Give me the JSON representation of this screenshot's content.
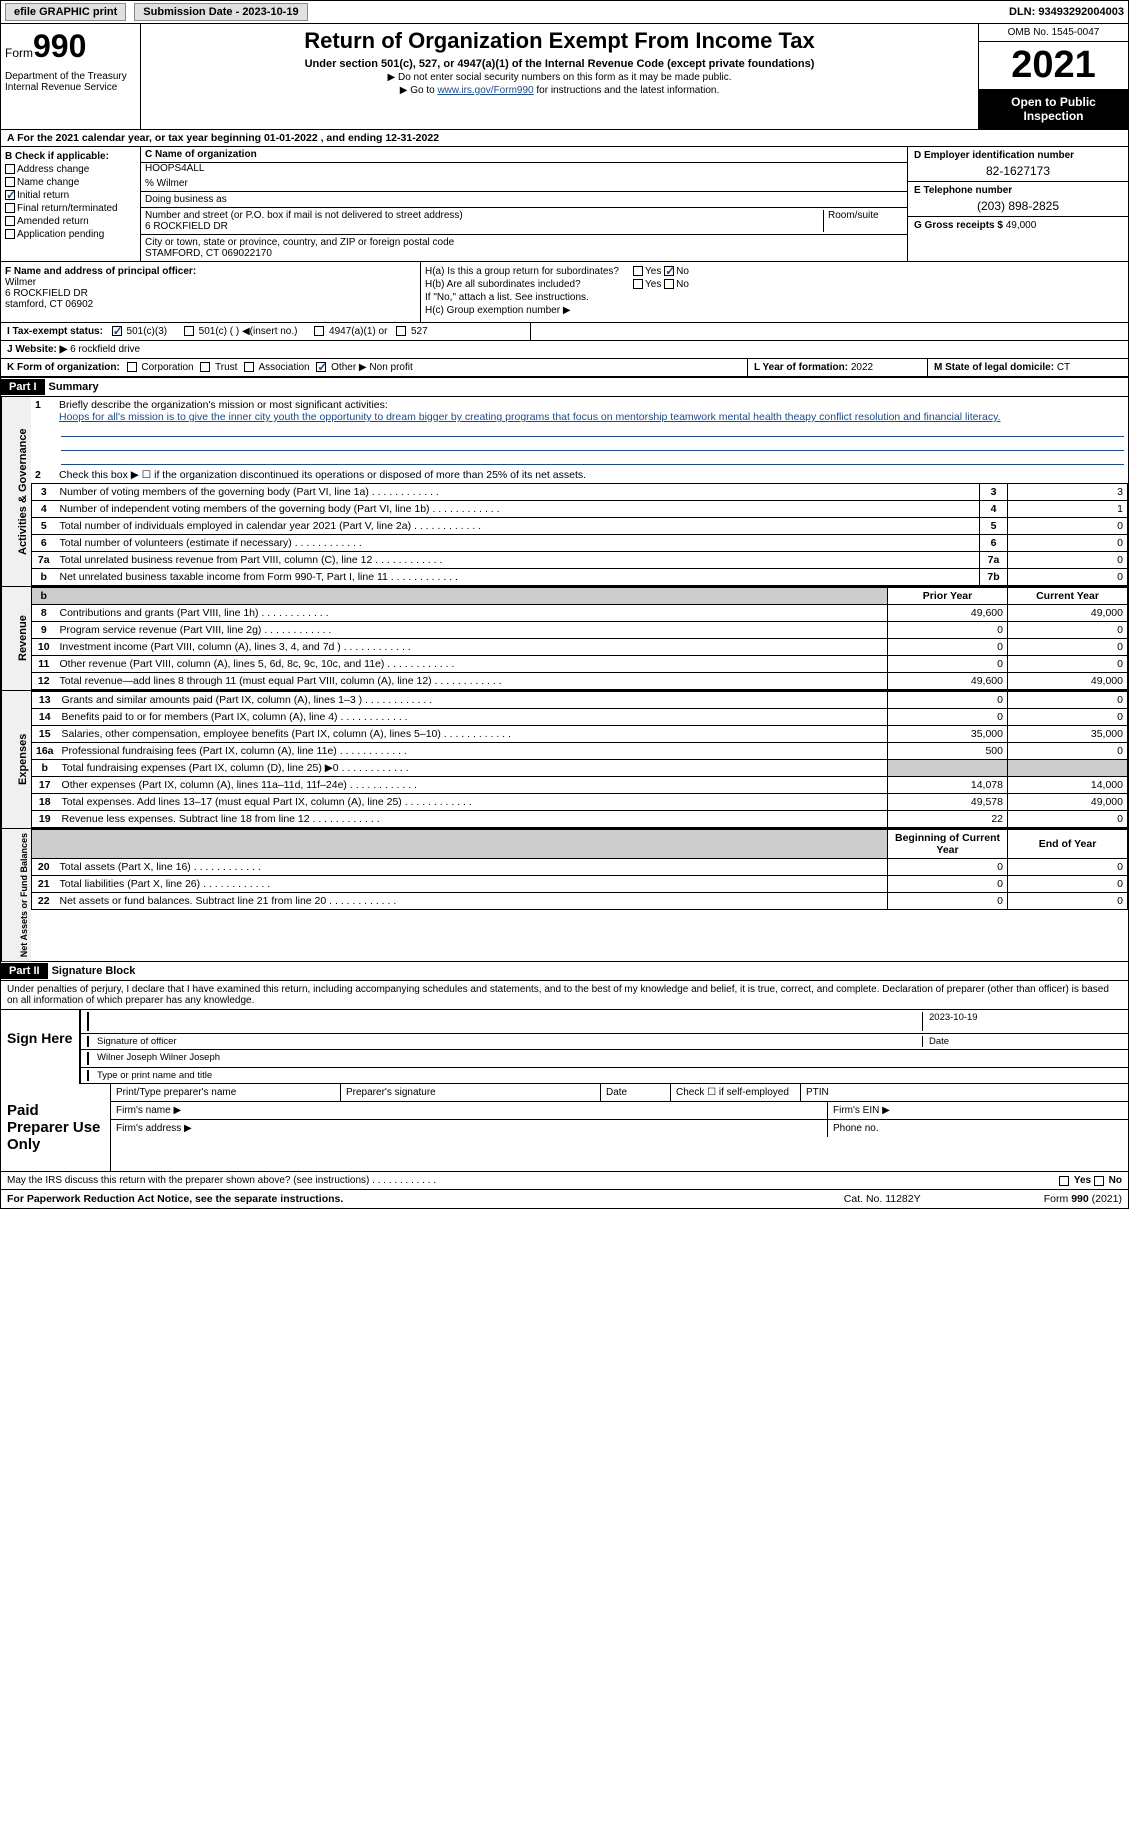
{
  "topbar": {
    "efile": "efile GRAPHIC print",
    "subdate_label": "Submission Date - 2023-10-19",
    "dln": "DLN: 93493292004003"
  },
  "header": {
    "form_word": "Form",
    "form_num": "990",
    "dept": "Department of the Treasury\nInternal Revenue Service",
    "title": "Return of Organization Exempt From Income Tax",
    "subtitle": "Under section 501(c), 527, or 4947(a)(1) of the Internal Revenue Code (except private foundations)",
    "line1": "▶ Do not enter social security numbers on this form as it may be made public.",
    "line2_pre": "▶ Go to ",
    "line2_link": "www.irs.gov/Form990",
    "line2_post": " for instructions and the latest information.",
    "omb": "OMB No. 1545-0047",
    "year": "2021",
    "open": "Open to Public Inspection"
  },
  "rowA": "A For the 2021 calendar year, or tax year beginning 01-01-2022   , and ending 12-31-2022",
  "colB": {
    "label": "B Check if applicable:",
    "items": [
      "Address change",
      "Name change",
      "Initial return",
      "Final return/terminated",
      "Amended return",
      "Application pending"
    ],
    "checked_idx": 2
  },
  "colC": {
    "name_label": "C Name of organization",
    "name": "HOOPS4ALL",
    "careof": "% Wilmer",
    "dba_label": "Doing business as",
    "addr_label": "Number and street (or P.O. box if mail is not delivered to street address)",
    "room_label": "Room/suite",
    "addr": "6 ROCKFIELD DR",
    "city_label": "City or town, state or province, country, and ZIP or foreign postal code",
    "city": "STAMFORD, CT  069022170"
  },
  "colD": {
    "ein_label": "D Employer identification number",
    "ein": "82-1627173",
    "phone_label": "E Telephone number",
    "phone": "(203) 898-2825",
    "gross_label": "G Gross receipts $",
    "gross": "49,000"
  },
  "colF": {
    "label": "F Name and address of principal officer:",
    "name": "Wilmer",
    "addr1": "6 ROCKFIELD DR",
    "addr2": "stamford, CT  06902"
  },
  "colH": {
    "a": "H(a)  Is this a group return for subordinates?",
    "b": "H(b)  Are all subordinates included?",
    "note": "If \"No,\" attach a list. See instructions.",
    "c": "H(c)  Group exemption number ▶",
    "yes": "Yes",
    "no": "No"
  },
  "rowI": {
    "label": "I  Tax-exempt status:",
    "opts": [
      "501(c)(3)",
      "501(c) (  ) ◀(insert no.)",
      "4947(a)(1) or",
      "527"
    ]
  },
  "rowJ": {
    "label": "J  Website: ▶",
    "val": "6 rockfield drive"
  },
  "rowK": {
    "label": "K Form of organization:",
    "opts": [
      "Corporation",
      "Trust",
      "Association",
      "Other ▶"
    ],
    "other_val": "Non profit",
    "checked_idx": 3
  },
  "rowL": {
    "label": "L Year of formation:",
    "val": "2022"
  },
  "rowM": {
    "label": "M State of legal domicile:",
    "val": "CT"
  },
  "part1": {
    "header": "Part I",
    "title": "Summary"
  },
  "summary": {
    "line1_label": "Briefly describe the organization's mission or most significant activities:",
    "mission": "Hoops for all's mission is to give the inner city youth the opportunity to dream bigger by creating programs that focus on mentorship teamwork mental health theapy conflict resolution and financial literacy.",
    "line2": "Check this box ▶ ☐  if the organization discontinued its operations or disposed of more than 25% of its net assets.",
    "rows_gov": [
      {
        "n": "3",
        "desc": "Number of voting members of the governing body (Part VI, line 1a)",
        "box": "3",
        "v": "3"
      },
      {
        "n": "4",
        "desc": "Number of independent voting members of the governing body (Part VI, line 1b)",
        "box": "4",
        "v": "1"
      },
      {
        "n": "5",
        "desc": "Total number of individuals employed in calendar year 2021 (Part V, line 2a)",
        "box": "5",
        "v": "0"
      },
      {
        "n": "6",
        "desc": "Total number of volunteers (estimate if necessary)",
        "box": "6",
        "v": "0"
      },
      {
        "n": "7a",
        "desc": "Total unrelated business revenue from Part VIII, column (C), line 12",
        "box": "7a",
        "v": "0"
      },
      {
        "n": "b",
        "desc": "Net unrelated business taxable income from Form 990-T, Part I, line 11",
        "box": "7b",
        "v": "0"
      }
    ],
    "col_hdr_prior": "Prior Year",
    "col_hdr_curr": "Current Year",
    "rows_rev": [
      {
        "n": "8",
        "desc": "Contributions and grants (Part VIII, line 1h)",
        "p": "49,600",
        "c": "49,000"
      },
      {
        "n": "9",
        "desc": "Program service revenue (Part VIII, line 2g)",
        "p": "0",
        "c": "0"
      },
      {
        "n": "10",
        "desc": "Investment income (Part VIII, column (A), lines 3, 4, and 7d )",
        "p": "0",
        "c": "0"
      },
      {
        "n": "11",
        "desc": "Other revenue (Part VIII, column (A), lines 5, 6d, 8c, 9c, 10c, and 11e)",
        "p": "0",
        "c": "0"
      },
      {
        "n": "12",
        "desc": "Total revenue—add lines 8 through 11 (must equal Part VIII, column (A), line 12)",
        "p": "49,600",
        "c": "49,000"
      }
    ],
    "rows_exp": [
      {
        "n": "13",
        "desc": "Grants and similar amounts paid (Part IX, column (A), lines 1–3 )",
        "p": "0",
        "c": "0"
      },
      {
        "n": "14",
        "desc": "Benefits paid to or for members (Part IX, column (A), line 4)",
        "p": "0",
        "c": "0"
      },
      {
        "n": "15",
        "desc": "Salaries, other compensation, employee benefits (Part IX, column (A), lines 5–10)",
        "p": "35,000",
        "c": "35,000"
      },
      {
        "n": "16a",
        "desc": "Professional fundraising fees (Part IX, column (A), line 11e)",
        "p": "500",
        "c": "0"
      },
      {
        "n": "b",
        "desc": "Total fundraising expenses (Part IX, column (D), line 25) ▶0",
        "p": "",
        "c": "",
        "grey": true
      },
      {
        "n": "17",
        "desc": "Other expenses (Part IX, column (A), lines 11a–11d, 11f–24e)",
        "p": "14,078",
        "c": "14,000"
      },
      {
        "n": "18",
        "desc": "Total expenses. Add lines 13–17 (must equal Part IX, column (A), line 25)",
        "p": "49,578",
        "c": "49,000"
      },
      {
        "n": "19",
        "desc": "Revenue less expenses. Subtract line 18 from line 12",
        "p": "22",
        "c": "0"
      }
    ],
    "col_hdr_beg": "Beginning of Current Year",
    "col_hdr_end": "End of Year",
    "rows_net": [
      {
        "n": "20",
        "desc": "Total assets (Part X, line 16)",
        "p": "0",
        "c": "0"
      },
      {
        "n": "21",
        "desc": "Total liabilities (Part X, line 26)",
        "p": "0",
        "c": "0"
      },
      {
        "n": "22",
        "desc": "Net assets or fund balances. Subtract line 21 from line 20",
        "p": "0",
        "c": "0"
      }
    ],
    "side_gov": "Activities & Governance",
    "side_rev": "Revenue",
    "side_exp": "Expenses",
    "side_net": "Net Assets or Fund Balances"
  },
  "part2": {
    "header": "Part II",
    "title": "Signature Block"
  },
  "sig": {
    "declare": "Under penalties of perjury, I declare that I have examined this return, including accompanying schedules and statements, and to the best of my knowledge and belief, it is true, correct, and complete. Declaration of preparer (other than officer) is based on all information of which preparer has any knowledge.",
    "sign_here": "Sign Here",
    "sig_officer": "Signature of officer",
    "sig_date": "2023-10-19",
    "sig_date_label": "Date",
    "name": "Wilner Joseph  Wilner Joseph",
    "name_label": "Type or print name and title",
    "paid_prep": "Paid Preparer Use Only",
    "prep_name": "Print/Type preparer's name",
    "prep_sig": "Preparer's signature",
    "prep_date": "Date",
    "prep_check": "Check ☐ if self-employed",
    "ptin": "PTIN",
    "firm_name": "Firm's name   ▶",
    "firm_ein": "Firm's EIN ▶",
    "firm_addr": "Firm's address ▶",
    "phone": "Phone no."
  },
  "footer": {
    "irs_discuss": "May the IRS discuss this return with the preparer shown above? (see instructions)",
    "yes": "Yes",
    "no": "No",
    "paperwork": "For Paperwork Reduction Act Notice, see the separate instructions.",
    "catno": "Cat. No. 11282Y",
    "formno": "Form 990 (2021)"
  }
}
